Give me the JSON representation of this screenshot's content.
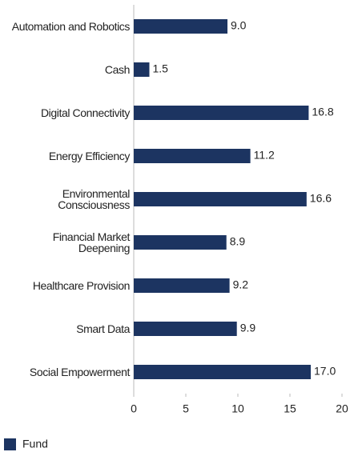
{
  "chart_data": {
    "type": "bar",
    "orientation": "horizontal",
    "categories": [
      "Automation and Robotics",
      "Cash",
      "Digital Connectivity",
      "Energy Efficiency",
      "Environmental\nConsciousness",
      "Financial Market\nDeepening",
      "Healthcare Provision",
      "Smart Data",
      "Social Empowerment"
    ],
    "series": [
      {
        "name": "Fund",
        "color": "#1c3461",
        "values": [
          9.0,
          1.5,
          16.8,
          11.2,
          16.6,
          8.9,
          9.2,
          9.9,
          17.0
        ],
        "value_labels": [
          "9.0",
          "1.5",
          "16.8",
          "11.2",
          "16.6",
          "8.9",
          "9.2",
          "9.9",
          "17.0"
        ]
      }
    ],
    "xlim": [
      0,
      20
    ],
    "xticks": [
      0,
      5,
      10,
      15,
      20
    ],
    "grid": false,
    "legend": "bottom-left"
  }
}
